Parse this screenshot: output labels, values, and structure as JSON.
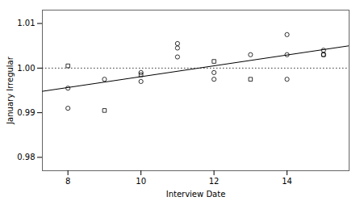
{
  "chart_data": {
    "type": "scatter",
    "xlabel": "Interview Date",
    "ylabel": "January Irregular",
    "xlim": [
      7.3,
      15.7
    ],
    "ylim": [
      0.977,
      1.013
    ],
    "xticks": [
      8,
      10,
      12,
      14
    ],
    "yticks": [
      0.98,
      0.99,
      {
        "value": 1.0,
        "label": "1.00"
      },
      1.01
    ],
    "series": [
      {
        "type": "scatter",
        "marker": "circle",
        "color": "#000000",
        "x": [
          8.0,
          8.0,
          9.0,
          10.0,
          10.0,
          11.0,
          11.0,
          11.0,
          12.0,
          12.0,
          13.0,
          14.0,
          14.0,
          14.0,
          15.0,
          15.0
        ],
        "values": [
          0.9955,
          0.991,
          0.9975,
          0.999,
          0.997,
          1.0055,
          1.0045,
          1.0025,
          0.999,
          0.9975,
          1.003,
          0.9975,
          1.003,
          1.0075,
          1.003,
          1.004
        ]
      },
      {
        "type": "scatter",
        "marker": "square",
        "color": "#000000",
        "x": [
          8.0,
          9.0,
          10.0,
          12.0,
          13.0,
          15.0
        ],
        "values": [
          1.0005,
          0.9905,
          0.9985,
          1.0015,
          0.9975,
          1.003
        ]
      },
      {
        "type": "line",
        "line_style": "solid",
        "color": "#000000",
        "x": [
          7.3,
          15.7
        ],
        "values": [
          0.9948,
          1.005
        ]
      }
    ],
    "hlines": [
      {
        "value": 1.0,
        "line_style": "dotted",
        "color": "#000000"
      }
    ]
  }
}
